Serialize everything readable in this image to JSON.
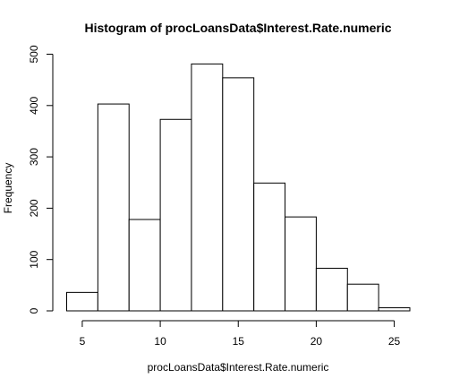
{
  "chart_data": {
    "type": "bar",
    "title": "Histogram of procLoansData$Interest.Rate.numeric",
    "xlabel": "procLoansData$Interest.Rate.numeric",
    "ylabel": "Frequency",
    "bin_edges": [
      4,
      6,
      8,
      10,
      12,
      14,
      16,
      18,
      20,
      22,
      24,
      26
    ],
    "values": [
      36,
      403,
      178,
      373,
      481,
      454,
      249,
      183,
      83,
      52,
      6
    ],
    "xlim": [
      4,
      26
    ],
    "ylim": [
      0,
      500
    ],
    "x_ticks": [
      5,
      10,
      15,
      20,
      25
    ],
    "y_ticks": [
      0,
      100,
      200,
      300,
      400,
      500
    ],
    "grid": false,
    "colors": {
      "bar_fill": "#ffffff",
      "bar_stroke": "#000000"
    }
  }
}
